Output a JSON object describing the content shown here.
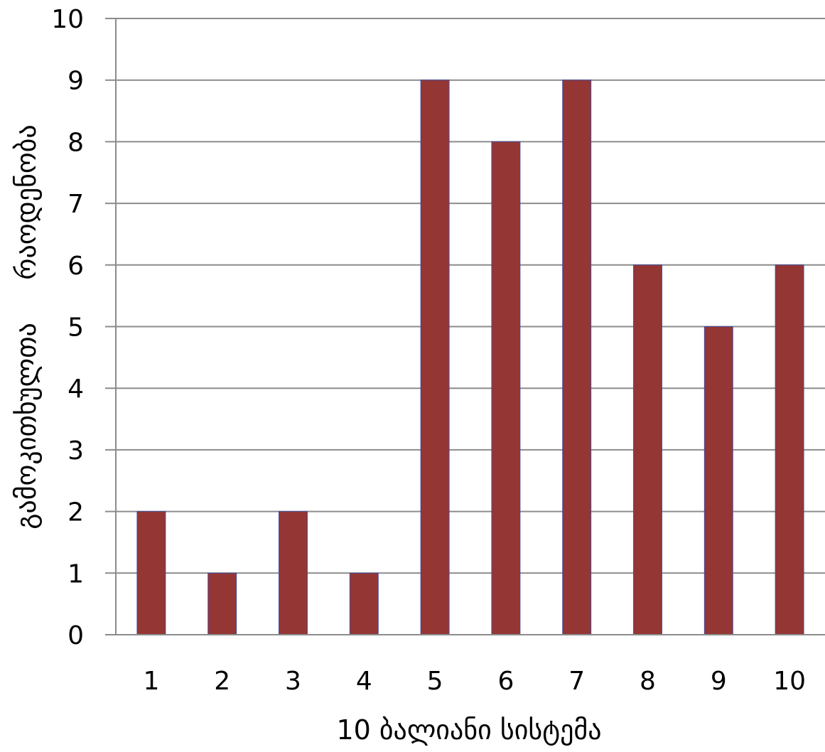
{
  "chart_data": {
    "type": "bar",
    "categories": [
      "1",
      "2",
      "3",
      "4",
      "5",
      "6",
      "7",
      "8",
      "9",
      "10"
    ],
    "values": [
      2,
      1,
      2,
      1,
      9,
      8,
      9,
      6,
      5,
      6
    ],
    "xlabel": "10 ბალიანი სისტემა",
    "ylabel": "გამოკითხულთა     რაოდენობა",
    "ylim": [
      0,
      10
    ],
    "yticks": [
      "0",
      "1",
      "2",
      "3",
      "4",
      "5",
      "6",
      "7",
      "8",
      "9",
      "10"
    ],
    "bar_color": "#943634",
    "bar_edge_color": "#4a4a9a",
    "grid": true,
    "legend": "none"
  }
}
